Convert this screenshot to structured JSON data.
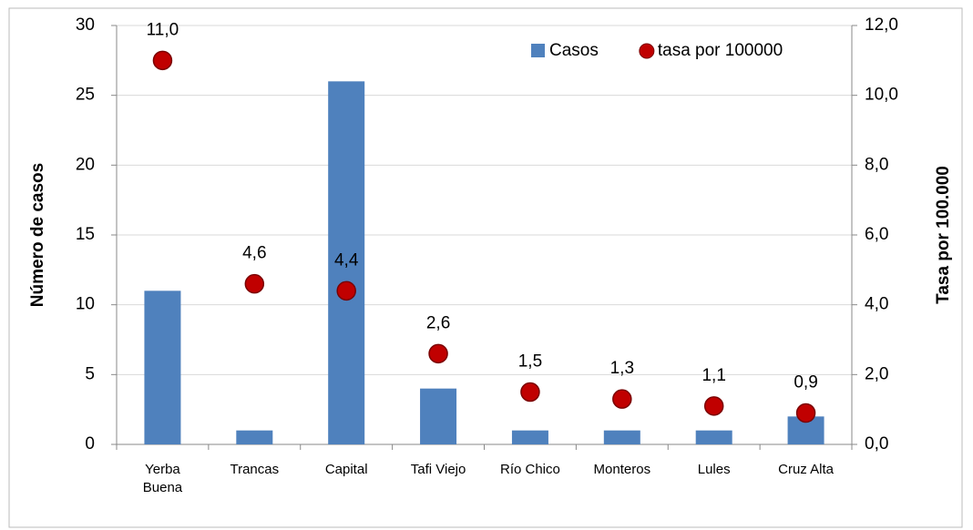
{
  "chart_data": {
    "type": "bar+scatter",
    "categories": [
      "Yerba Buena",
      "Trancas",
      "Capital",
      "Tafi Viejo",
      "Río Chico",
      "Monteros",
      "Lules",
      "Cruz Alta"
    ],
    "series": [
      {
        "name": "Casos",
        "type": "bar",
        "color": "#4f81bd",
        "values": [
          11,
          1,
          26,
          4,
          1,
          1,
          1,
          2
        ]
      },
      {
        "name": "tasa por 100000",
        "type": "scatter",
        "axis": "y2",
        "color": "#c00000",
        "values": [
          11.0,
          4.6,
          4.4,
          2.6,
          1.5,
          1.3,
          1.1,
          0.9
        ],
        "value_labels": [
          "11,0",
          "4,6",
          "4,4",
          "2,6",
          "1,5",
          "1,3",
          "1,1",
          "0,9"
        ]
      }
    ],
    "ylabel": "Número de casos",
    "y2label": "Tasa por 100.000",
    "ylim": [
      0,
      30
    ],
    "yticks": [
      0,
      5,
      10,
      15,
      20,
      25,
      30
    ],
    "y2lim": [
      0,
      12
    ],
    "y2ticks": [
      {
        "value": 0,
        "label": "0,0"
      },
      {
        "value": 2,
        "label": "2,0"
      },
      {
        "value": 4,
        "label": "4,0"
      },
      {
        "value": 6,
        "label": "6,0"
      },
      {
        "value": 8,
        "label": "8,0"
      },
      {
        "value": 10,
        "label": "10,0"
      },
      {
        "value": 12,
        "label": "12,0"
      }
    ],
    "grid": true,
    "legend": "upper right"
  }
}
